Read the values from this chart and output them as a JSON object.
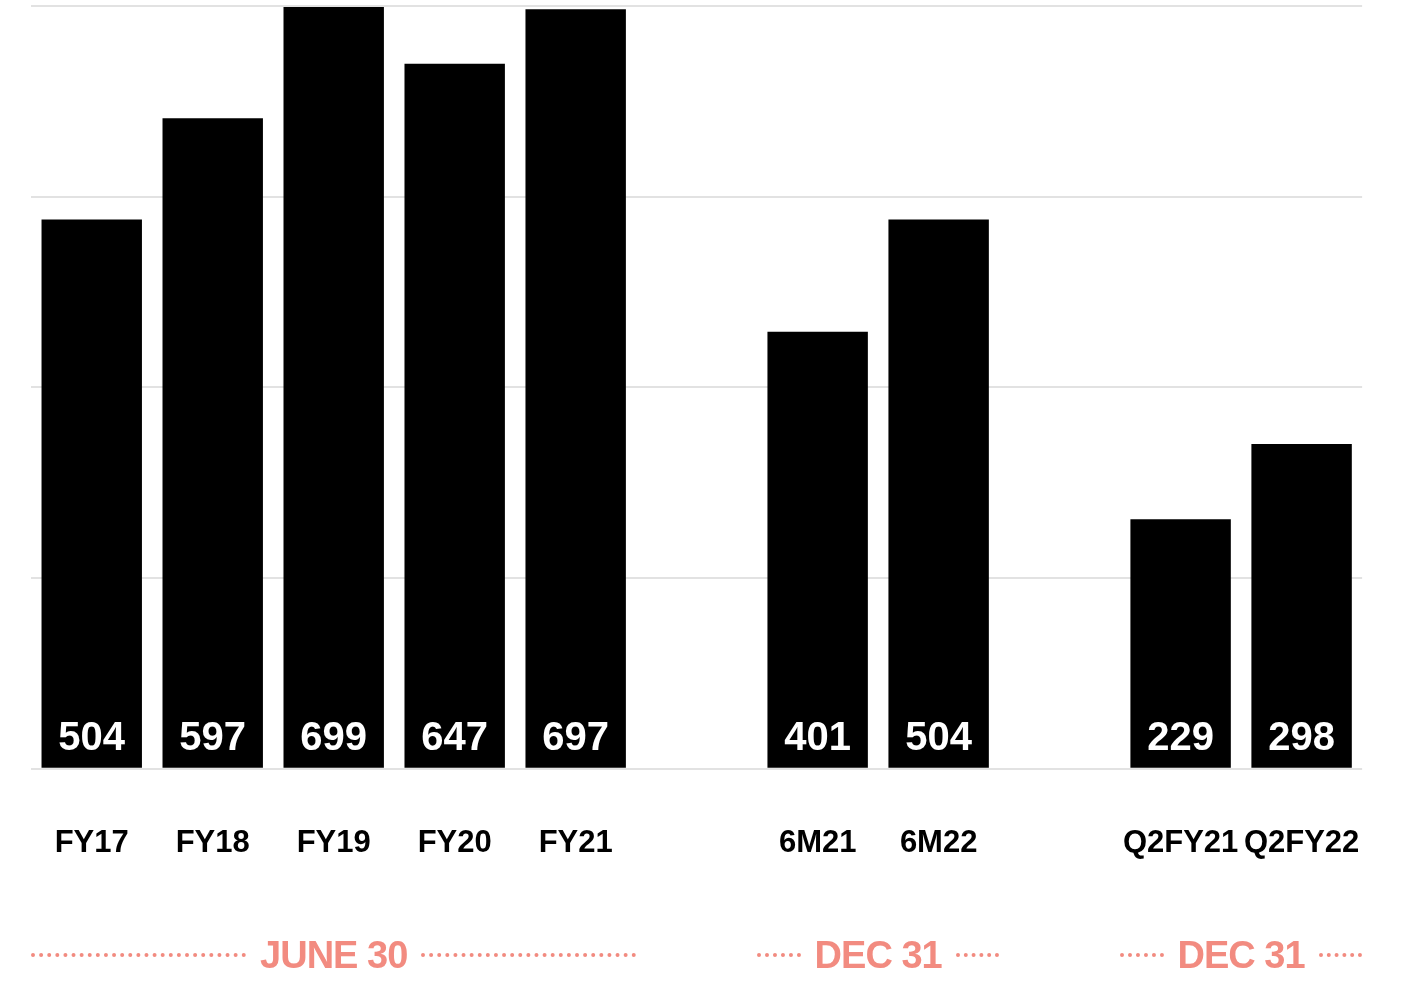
{
  "chart_data": {
    "type": "bar",
    "categories": [
      "FY17",
      "FY18",
      "FY19",
      "FY20",
      "FY21",
      null,
      "6M21",
      "6M22",
      null,
      "Q2FY21",
      "Q2FY22"
    ],
    "values": [
      504,
      597,
      699,
      647,
      697,
      null,
      401,
      504,
      null,
      229,
      298
    ],
    "color": "#000000",
    "ylim": [
      0,
      700
    ],
    "yticks": [
      {
        "value": 0,
        "label": null
      },
      {
        "value": 175,
        "label": null
      },
      {
        "value": 350,
        "label": null
      },
      {
        "value": 525,
        "label": null
      },
      {
        "value": 700,
        "label": null
      }
    ],
    "tick_labels": "x",
    "grid": "y",
    "data_labels": true,
    "legend": false,
    "annotations": [
      "JUNE 30",
      "DEC 31",
      "DEC 31"
    ]
  }
}
